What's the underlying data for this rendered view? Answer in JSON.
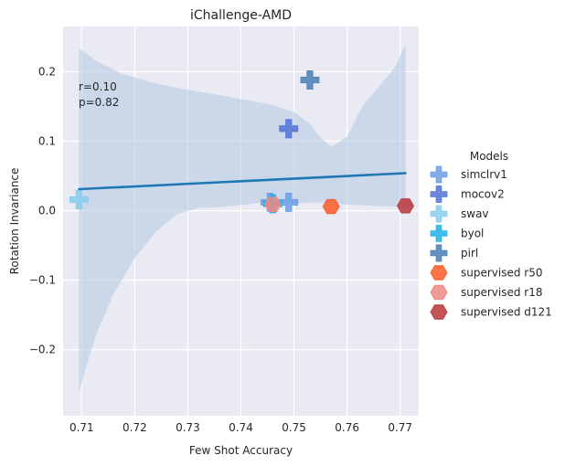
{
  "chart_data": {
    "type": "scatter",
    "title": "iChallenge-AMD",
    "xlabel": "Few Shot Accuracy",
    "ylabel": "Rotation Invariance",
    "xlim": [
      0.7065,
      0.7735
    ],
    "ylim": [
      -0.295,
      0.265
    ],
    "xticks": [
      0.71,
      0.72,
      0.73,
      0.74,
      0.75,
      0.76,
      0.77
    ],
    "xtick_labels": [
      "0.71",
      "0.72",
      "0.73",
      "0.74",
      "0.75",
      "0.76",
      "0.77"
    ],
    "yticks": [
      -0.2,
      -0.1,
      0.0,
      0.1,
      0.2
    ],
    "ytick_labels": [
      "−0.2",
      "−0.1",
      "0.0",
      "0.1",
      "0.2"
    ],
    "grid": true,
    "background": "#eaeaf2",
    "annotations": [
      "r=0.10",
      "p=0.82"
    ],
    "legend": {
      "title": "Models",
      "placement": "right"
    },
    "regression": {
      "x_start": 0.7095,
      "x_end": 0.771,
      "y_start": 0.031,
      "y_end": 0.054,
      "color": "#1f77b4",
      "band_color": "#b0c8e3",
      "band_upper": [
        [
          0.7095,
          0.234
        ],
        [
          0.713,
          0.214
        ],
        [
          0.718,
          0.196
        ],
        [
          0.724,
          0.183
        ],
        [
          0.73,
          0.174
        ],
        [
          0.736,
          0.166
        ],
        [
          0.742,
          0.158
        ],
        [
          0.746,
          0.152
        ],
        [
          0.75,
          0.142
        ],
        [
          0.753,
          0.125
        ],
        [
          0.755,
          0.105
        ],
        [
          0.757,
          0.092
        ],
        [
          0.76,
          0.106
        ],
        [
          0.763,
          0.152
        ],
        [
          0.766,
          0.178
        ],
        [
          0.769,
          0.206
        ],
        [
          0.771,
          0.24
        ]
      ],
      "band_lower": [
        [
          0.7095,
          -0.262
        ],
        [
          0.711,
          -0.22
        ],
        [
          0.713,
          -0.173
        ],
        [
          0.716,
          -0.12
        ],
        [
          0.72,
          -0.068
        ],
        [
          0.724,
          -0.03
        ],
        [
          0.728,
          -0.005
        ],
        [
          0.732,
          0.004
        ],
        [
          0.736,
          0.005
        ],
        [
          0.74,
          0.008
        ],
        [
          0.743,
          0.011
        ],
        [
          0.747,
          0.011
        ],
        [
          0.751,
          0.011
        ],
        [
          0.755,
          0.012
        ],
        [
          0.76,
          0.009
        ],
        [
          0.765,
          0.007
        ],
        [
          0.771,
          0.005
        ]
      ]
    },
    "series": [
      {
        "name": "simclrv1",
        "marker": "plus",
        "color": "#6f9ee8",
        "points": [
          [
            0.7455,
            0.012
          ],
          [
            0.749,
            0.012
          ]
        ]
      },
      {
        "name": "mocov2",
        "marker": "plus",
        "color": "#4f73d6",
        "points": [
          [
            0.749,
            0.118
          ]
        ]
      },
      {
        "name": "swav",
        "marker": "plus",
        "color": "#87ccf0",
        "points": [
          [
            0.7095,
            0.016
          ]
        ]
      },
      {
        "name": "byol",
        "marker": "plus",
        "color": "#1fb2ea",
        "points": [
          [
            0.746,
            0.01
          ]
        ]
      },
      {
        "name": "pirl",
        "marker": "plus",
        "color": "#4a7fb6",
        "points": [
          [
            0.753,
            0.188
          ]
        ]
      },
      {
        "name": "supervised r50",
        "marker": "hexagon",
        "color": "#fb5a28",
        "points": [
          [
            0.757,
            0.006
          ]
        ]
      },
      {
        "name": "supervised r18",
        "marker": "hexagon",
        "color": "#ee8a84",
        "points": [
          [
            0.746,
            0.009
          ]
        ]
      },
      {
        "name": "supervised d121",
        "marker": "hexagon",
        "color": "#b8353a",
        "points": [
          [
            0.771,
            0.007
          ]
        ]
      }
    ]
  }
}
